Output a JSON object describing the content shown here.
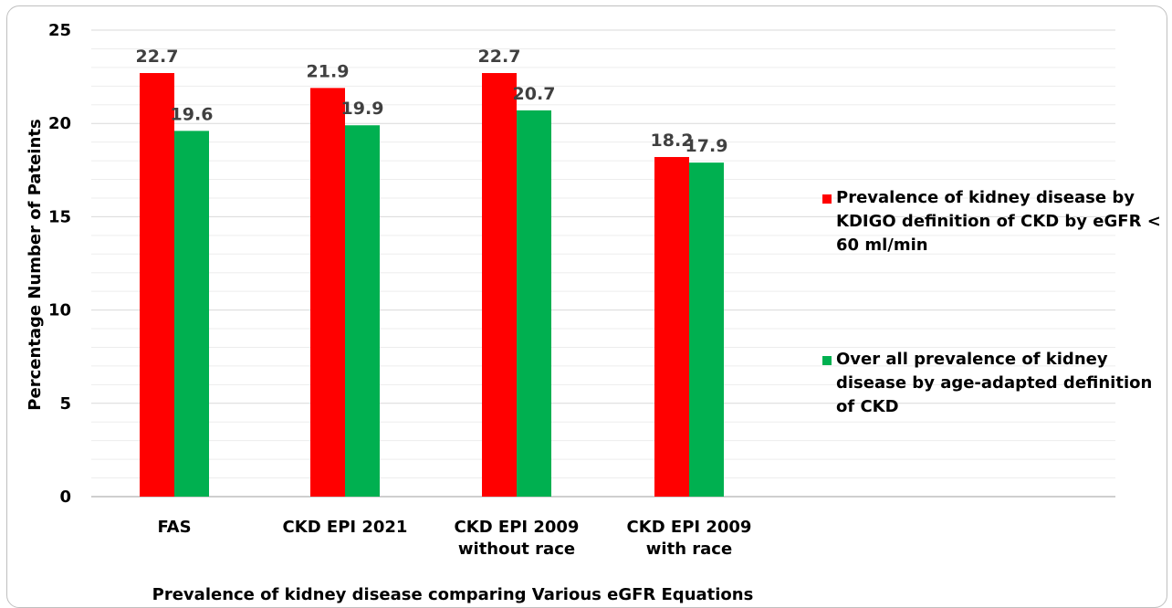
{
  "chart_data": {
    "type": "bar",
    "categories": [
      [
        "FAS"
      ],
      [
        "CKD EPI 2021"
      ],
      [
        "CKD EPI 2009",
        "without race"
      ],
      [
        "CKD EPI 2009",
        "with race"
      ]
    ],
    "series": [
      {
        "name": [
          "Prevalence of kidney disease by",
          "KDIGO definition of CKD by eGFR <",
          "60 ml/min"
        ],
        "color": "#ff0000",
        "values": [
          22.7,
          21.9,
          22.7,
          18.2
        ],
        "labels": [
          "22.7",
          "21.9",
          "22.7",
          "18.2"
        ]
      },
      {
        "name": [
          "Over all prevalence of kidney",
          "disease by age-adapted definition",
          "of CKD"
        ],
        "color": "#00b050",
        "values": [
          19.6,
          19.9,
          20.7,
          17.9
        ],
        "labels": [
          "19.6",
          "19.9",
          "20.7",
          "17.9"
        ]
      }
    ],
    "xlabel": "Prevalence of kidney disease comparing Various eGFR Equations",
    "ylabel": "Percentage Number of Pateints",
    "ylim": [
      0,
      25
    ],
    "yticks": [
      0,
      5,
      10,
      15,
      20,
      25
    ],
    "grid": true,
    "legend": "right"
  }
}
